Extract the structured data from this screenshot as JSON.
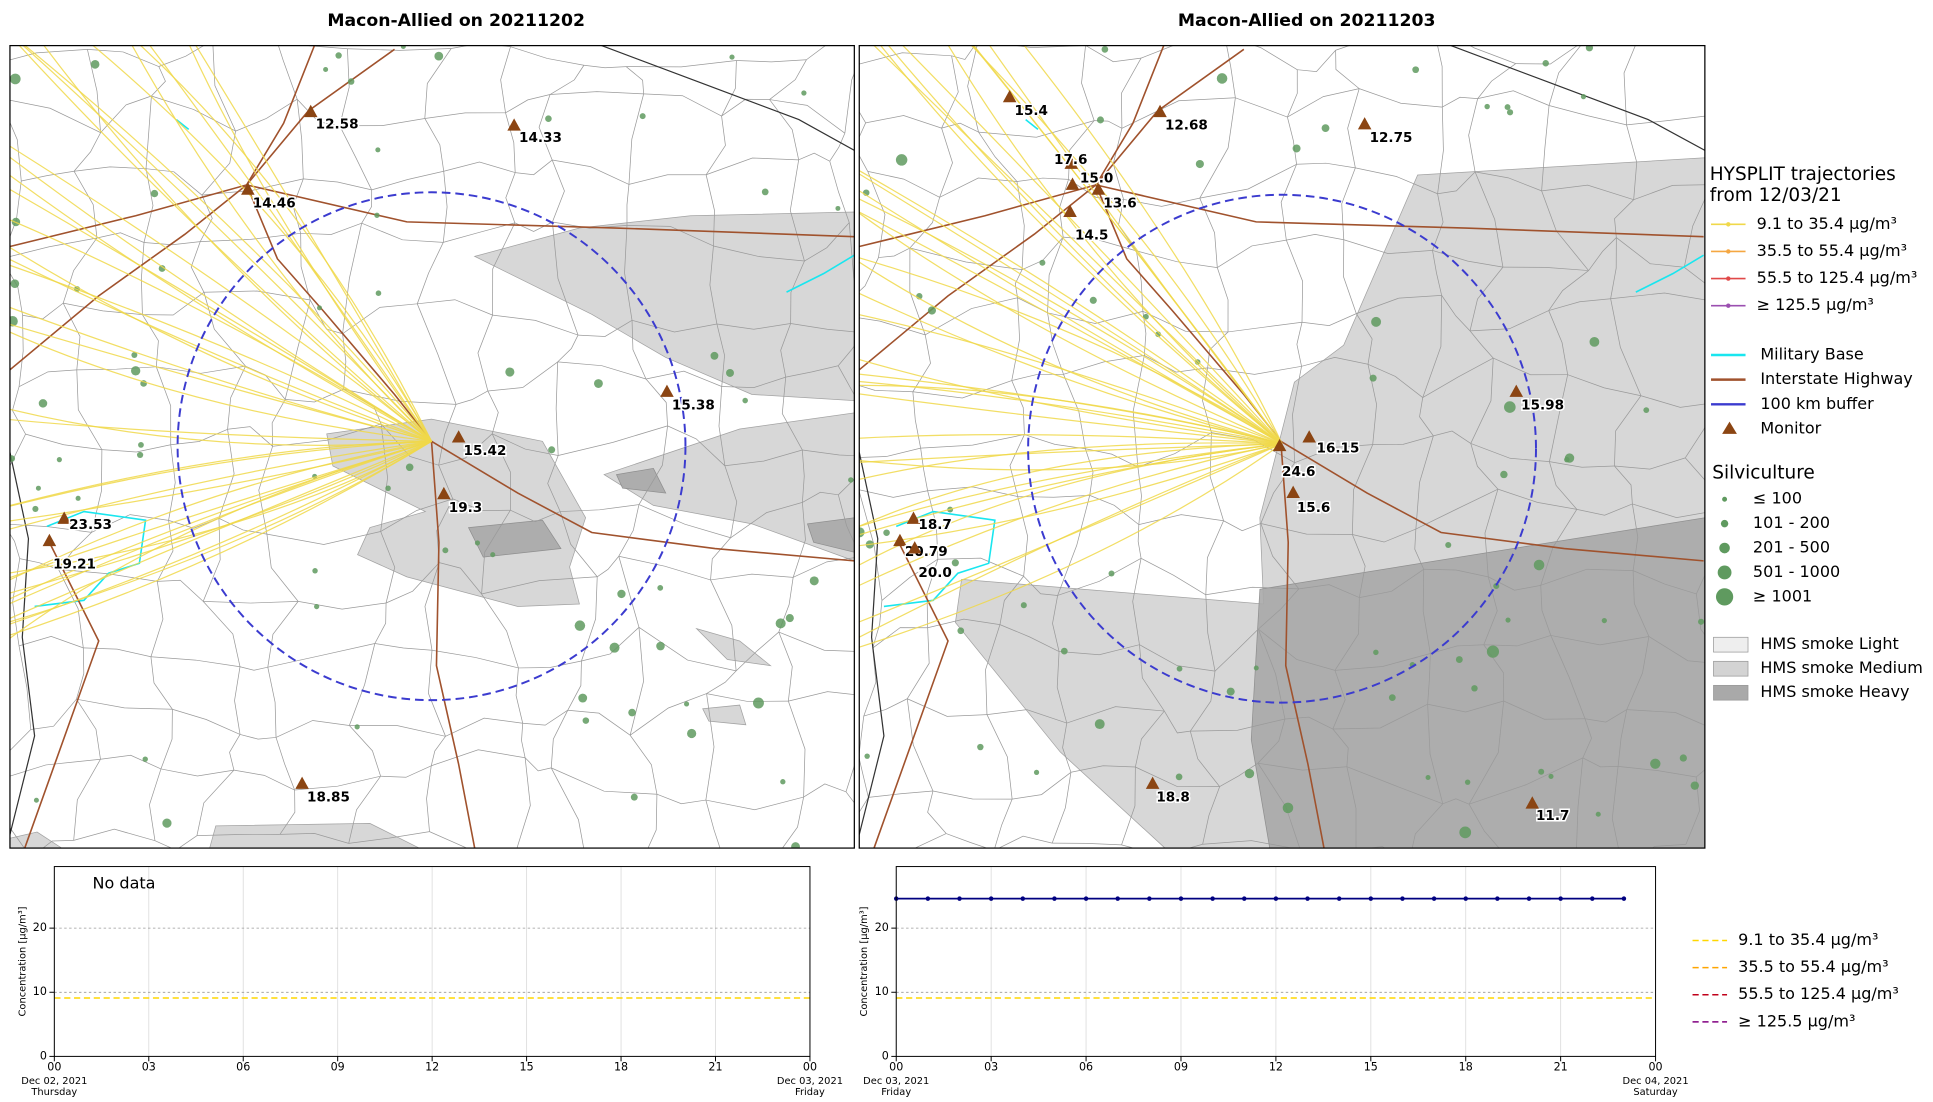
{
  "maps": [
    {
      "title": "Macon-Allied on 20211202",
      "monitors": [
        "12.58",
        "14.33",
        "14.46",
        "15.38",
        "15.42",
        "19.3",
        "23.53",
        "19.21",
        "18.85"
      ]
    },
    {
      "title": "Macon-Allied on 20211203",
      "monitors": [
        "15.4",
        "12.68",
        "12.75",
        "17.6",
        "15.0",
        "13.6",
        "14.5",
        "24.6",
        "16.15",
        "15.6",
        "15.98",
        "18.7",
        "20.79",
        "20.0",
        "18.8",
        "11.7"
      ]
    }
  ],
  "map_legend": {
    "trajectory_title": [
      "HYSPLIT trajectories",
      "from 12/03/21"
    ],
    "trajectories": [
      {
        "name": "9.1 to 35.4 µg/m³",
        "color": "#f0d84a"
      },
      {
        "name": "35.5 to 55.4 µg/m³",
        "color": "#f5a742"
      },
      {
        "name": "55.5 to 125.4 µg/m³",
        "color": "#e04848"
      },
      {
        "name": "≥ 125.5 µg/m³",
        "color": "#9b4fb0"
      }
    ],
    "layers": [
      {
        "name": "Military Base",
        "color": "#19e6ef"
      },
      {
        "name": "Interstate Highway",
        "color": "#a0522d"
      },
      {
        "name": "100 km buffer",
        "color": "#3b3bcf"
      },
      {
        "name": "Monitor",
        "color": "#8b4513"
      }
    ],
    "silviculture_title": "Silviculture",
    "silviculture": [
      "≤ 100",
      "101 - 200",
      "201 - 500",
      "501 - 1000",
      "≥ 1001"
    ],
    "smoke": [
      {
        "name": "HMS smoke Light",
        "color": "#eeeeee"
      },
      {
        "name": "HMS smoke Medium",
        "color": "#d3d3d3"
      },
      {
        "name": "HMS smoke Heavy",
        "color": "#a9a9a9"
      }
    ]
  },
  "thresholds": [
    {
      "name": "9.1 to 35.4 µg/m³",
      "color": "#ffd700",
      "value": 9.1
    },
    {
      "name": "35.5 to 55.4 µg/m³",
      "color": "#ffa500",
      "value": 35.5
    },
    {
      "name": "55.5 to 125.4 µg/m³",
      "color": "#c0001a",
      "value": 55.5
    },
    {
      "name": "≥ 125.5 µg/m³",
      "color": "#800080",
      "value": 125.5
    }
  ],
  "chart_data": [
    {
      "type": "line",
      "annotation": "No data",
      "y_label": "Concentration [µg/m³]",
      "xlim": [
        0,
        24
      ],
      "xticks": [
        {
          "value": 0,
          "label": "00"
        },
        {
          "value": 3,
          "label": "03"
        },
        {
          "value": 6,
          "label": "06"
        },
        {
          "value": 9,
          "label": "09"
        },
        12,
        15,
        18,
        21,
        {
          "value": 24,
          "label": "00"
        }
      ],
      "x_dates": [
        {
          "value": 0,
          "date": "Dec 02, 2021",
          "day": "Thursday"
        },
        {
          "value": 24,
          "date": "Dec 03, 2021",
          "day": "Friday"
        }
      ],
      "ylim": [
        0,
        29.6
      ],
      "yticks": [
        0,
        10,
        20
      ],
      "grid": true,
      "x": [],
      "series": []
    },
    {
      "type": "line",
      "y_label": "Concentration [µg/m³]",
      "xlim": [
        0,
        24
      ],
      "xticks": [
        {
          "value": 0,
          "label": "00"
        },
        {
          "value": 3,
          "label": "03"
        },
        {
          "value": 6,
          "label": "06"
        },
        {
          "value": 9,
          "label": "09"
        },
        12,
        15,
        18,
        21,
        {
          "value": 24,
          "label": "00"
        }
      ],
      "x_dates": [
        {
          "value": 0,
          "date": "Dec 03, 2021",
          "day": "Friday"
        },
        {
          "value": 24,
          "date": "Dec 04, 2021",
          "day": "Saturday"
        }
      ],
      "ylim": [
        0,
        29.6
      ],
      "yticks": [
        0,
        10,
        20
      ],
      "grid": true,
      "x": [
        0,
        1,
        2,
        3,
        4,
        5,
        6,
        7,
        8,
        9,
        10,
        11,
        12,
        13,
        14,
        15,
        16,
        17,
        18,
        19,
        20,
        21,
        22,
        23
      ],
      "series": [
        {
          "color": "#000080",
          "values": [
            24.6,
            24.6,
            24.6,
            24.6,
            24.6,
            24.6,
            24.6,
            24.6,
            24.6,
            24.6,
            24.6,
            24.6,
            24.6,
            24.6,
            24.6,
            24.6,
            24.6,
            24.6,
            24.6,
            24.6,
            24.6,
            24.6,
            24.6,
            24.6
          ]
        }
      ]
    }
  ]
}
